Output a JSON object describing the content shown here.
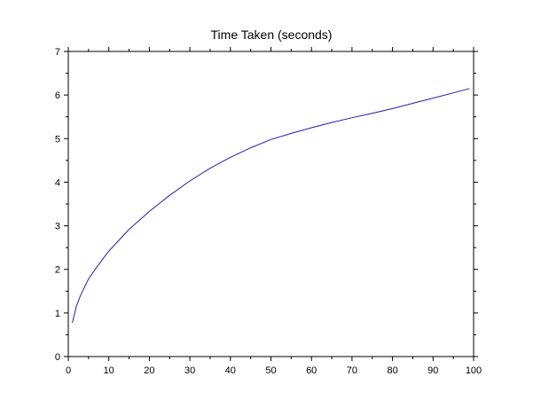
{
  "chart_data": {
    "type": "line",
    "title": "Time Taken (seconds)",
    "xlabel": "",
    "ylabel": "",
    "xlim": [
      0,
      100
    ],
    "ylim": [
      0,
      7
    ],
    "x_ticks": [
      0,
      10,
      20,
      30,
      40,
      50,
      60,
      70,
      80,
      90,
      100
    ],
    "y_ticks": [
      0,
      1,
      2,
      3,
      4,
      5,
      6,
      7
    ],
    "x_tick_labels": [
      "0",
      "10",
      "20",
      "30",
      "40",
      "50",
      "60",
      "70",
      "80",
      "90",
      "100"
    ],
    "y_tick_labels": [
      "0",
      "1",
      "2",
      "3",
      "4",
      "5",
      "6",
      "7"
    ],
    "grid": false,
    "legend": "none",
    "line_color": "#1f1fb4",
    "series": [
      {
        "x": [
          1,
          2,
          3,
          5,
          7,
          10,
          15,
          20,
          25,
          30,
          35,
          40,
          45,
          50,
          55,
          60,
          65,
          70,
          75,
          80,
          85,
          90,
          95,
          99
        ],
        "values": [
          0.78,
          1.15,
          1.4,
          1.78,
          2.05,
          2.42,
          2.92,
          3.33,
          3.7,
          4.03,
          4.32,
          4.57,
          4.79,
          4.98,
          5.12,
          5.25,
          5.37,
          5.48,
          5.58,
          5.69,
          5.81,
          5.93,
          6.05,
          6.15
        ]
      }
    ]
  }
}
